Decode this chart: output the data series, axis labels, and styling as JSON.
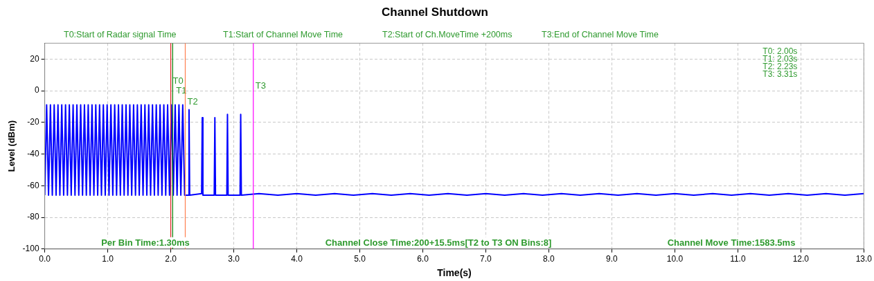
{
  "chart_data": {
    "type": "line",
    "title": "Channel Shutdown",
    "xlabel": "Time(s)",
    "ylabel": "Level (dBm)",
    "x": [
      0,
      0.03,
      0.06,
      0.09,
      0.12,
      0.15,
      0.18,
      0.21,
      0.24,
      0.27,
      0.3,
      0.33,
      0.36,
      0.39,
      0.42,
      0.45,
      0.48,
      0.51,
      0.54,
      0.57,
      0.6,
      0.63,
      0.66,
      0.69,
      0.72,
      0.75,
      0.78,
      0.81,
      0.84,
      0.87,
      0.9,
      0.93,
      0.96,
      0.99,
      1.02,
      1.05,
      1.08,
      1.11,
      1.14,
      1.17,
      1.2,
      1.23,
      1.26,
      1.29,
      1.32,
      1.35,
      1.38,
      1.41,
      1.44,
      1.47,
      1.5,
      1.53,
      1.56,
      1.59,
      1.62,
      1.65,
      1.68,
      1.71,
      1.74,
      1.77,
      1.8,
      1.83,
      1.86,
      1.89,
      1.92,
      1.95,
      1.98,
      2.01,
      2.04,
      2.07,
      2.1,
      2.13,
      2.16,
      2.19,
      2.22,
      2.23,
      2.28,
      2.29,
      2.3,
      2.49,
      2.5,
      2.51,
      2.69,
      2.7,
      2.71,
      2.89,
      2.9,
      2.91,
      3.1,
      3.11,
      3.12,
      3.4,
      3.7,
      4,
      4.3,
      4.6,
      4.9,
      5.2,
      5.5,
      5.8,
      6.1,
      6.4,
      6.7,
      7,
      7.3,
      7.6,
      7.9,
      8.2,
      8.5,
      8.8,
      9.1,
      9.4,
      9.7,
      10,
      10.3,
      10.6,
      10.9,
      11.2,
      11.5,
      11.8,
      12.1,
      12.4,
      12.7,
      13
    ],
    "series": [
      {
        "color": "#0000ff",
        "values": [
          -66,
          -9,
          -66,
          -9,
          -66,
          -9,
          -66,
          -9,
          -66,
          -9,
          -66,
          -9,
          -66,
          -9,
          -66,
          -9,
          -66,
          -9,
          -66,
          -9,
          -66,
          -9,
          -66,
          -9,
          -66,
          -9,
          -66,
          -9,
          -66,
          -9,
          -66,
          -9,
          -66,
          -9,
          -66,
          -9,
          -66,
          -9,
          -66,
          -9,
          -66,
          -9,
          -66,
          -9,
          -66,
          -9,
          -66,
          -9,
          -66,
          -9,
          -66,
          -9,
          -66,
          -9,
          -66,
          -9,
          -66,
          -9,
          -66,
          -9,
          -66,
          -9,
          -66,
          -9,
          -66,
          -9,
          -66,
          -9,
          -66,
          -9,
          -66,
          -9,
          -66,
          -9,
          -66,
          -66,
          -66,
          -12,
          -66,
          -65,
          -17,
          -66,
          -66,
          -17,
          -66,
          -66,
          -15,
          -66,
          -66,
          -15,
          -66,
          -65,
          -66,
          -65,
          -66,
          -65,
          -66,
          -65,
          -66,
          -65,
          -66,
          -65,
          -66,
          -65,
          -66,
          -65,
          -66,
          -65,
          -66,
          -65,
          -66,
          -65,
          -66,
          -65,
          -66,
          -65,
          -66,
          -65,
          -66,
          -65,
          -66,
          -65,
          -66,
          -65
        ]
      }
    ],
    "xlim": [
      0,
      13
    ],
    "ylim": [
      -100,
      30
    ],
    "xticks": [
      {
        "value": 0,
        "label": "0.0"
      },
      {
        "value": 1,
        "label": "1.0"
      },
      {
        "value": 2,
        "label": "2.0"
      },
      {
        "value": 3,
        "label": "3.0"
      },
      {
        "value": 4,
        "label": "4.0"
      },
      {
        "value": 5,
        "label": "5.0"
      },
      {
        "value": 6,
        "label": "6.0"
      },
      {
        "value": 7,
        "label": "7.0"
      },
      {
        "value": 8,
        "label": "8.0"
      },
      {
        "value": 9,
        "label": "9.0"
      },
      {
        "value": 10,
        "label": "10.0"
      },
      {
        "value": 11,
        "label": "11.0"
      },
      {
        "value": 12,
        "label": "12.0"
      },
      {
        "value": 13,
        "label": "13.0"
      }
    ],
    "yticks": [
      -100,
      -80,
      -60,
      -40,
      -20,
      0,
      20
    ],
    "grid": true,
    "marker": "none",
    "line_style": "solid",
    "legend": false,
    "ref_lines": [
      {
        "axis": "x",
        "value": 2.0,
        "label": "T0",
        "color": "#e02020"
      },
      {
        "axis": "x",
        "value": 2.03,
        "label": "T1",
        "color": "#008000"
      },
      {
        "axis": "x",
        "value": 2.23,
        "label": "T2",
        "color": "#ff7f50"
      },
      {
        "axis": "x",
        "value": 3.31,
        "label": "T3",
        "color": "#ff00ff"
      }
    ],
    "annotations": [
      "T0:Start of Radar signal Time",
      "T1:Start of Channel Move Time",
      "T2:Start of Ch.MoveTime +200ms",
      "T3:End of Channel Move Time",
      "T0: 2.00s",
      "T1: 2.03s",
      "T2: 2.23s",
      "T3: 3.31s",
      "Per Bin Time:1.30ms",
      "Channel Close Time:200+15.5ms[T2 to T3 ON Bins:8]",
      "Channel Move Time:1583.5ms"
    ]
  }
}
